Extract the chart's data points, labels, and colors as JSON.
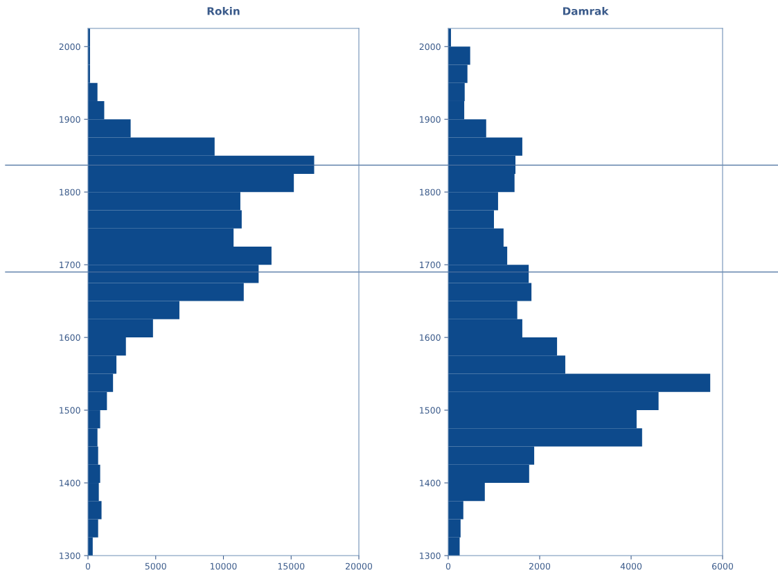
{
  "chart_data": [
    {
      "type": "histogram",
      "orientation": "horizontal",
      "title": "Rokin",
      "color": "#0d4a8c",
      "bins": [
        1300,
        1325,
        1350,
        1375,
        1400,
        1425,
        1450,
        1475,
        1500,
        1525,
        1550,
        1575,
        1600,
        1625,
        1650,
        1675,
        1700,
        1725,
        1750,
        1775,
        1800,
        1825,
        1850,
        1875,
        1900,
        1925,
        1950,
        1975,
        2000,
        2025
      ],
      "values": [
        350,
        750,
        1000,
        800,
        900,
        750,
        700,
        900,
        1400,
        1850,
        2100,
        2800,
        4800,
        6750,
        11500,
        12600,
        13550,
        10750,
        11350,
        11250,
        15200,
        16700,
        9350,
        3150,
        1200,
        700,
        150,
        150,
        150
      ],
      "xlim": [
        0,
        20000
      ],
      "xticks": [
        0,
        5000,
        10000,
        15000,
        20000
      ],
      "ylim": [
        1300,
        2025
      ],
      "yticks": [
        1300,
        1400,
        1500,
        1600,
        1700,
        1800,
        1900,
        2000
      ],
      "ref_lines": [
        {
          "axis": "y",
          "value": 1837,
          "color": "#4a6f9e"
        },
        {
          "axis": "y",
          "value": 1690,
          "color": "#4a6f9e"
        }
      ]
    },
    {
      "type": "histogram",
      "orientation": "horizontal",
      "title": "Damrak",
      "color": "#0d4a8c",
      "bins": [
        1300,
        1325,
        1350,
        1375,
        1400,
        1425,
        1450,
        1475,
        1500,
        1525,
        1550,
        1575,
        1600,
        1625,
        1650,
        1675,
        1700,
        1725,
        1750,
        1775,
        1800,
        1825,
        1850,
        1875,
        1900,
        1925,
        1950,
        1975,
        2000,
        2025
      ],
      "values": [
        250,
        270,
        330,
        800,
        1770,
        1880,
        4240,
        4120,
        4600,
        5730,
        2560,
        2380,
        1620,
        1510,
        1820,
        1760,
        1290,
        1210,
        1000,
        1090,
        1450,
        1470,
        1620,
        830,
        350,
        360,
        420,
        480,
        60
      ],
      "xlim": [
        0,
        6000
      ],
      "xticks": [
        0,
        2000,
        4000,
        6000
      ],
      "ylim": [
        1300,
        2025
      ],
      "yticks": [
        1300,
        1400,
        1500,
        1600,
        1700,
        1800,
        1900,
        2000
      ],
      "ref_lines": [
        {
          "axis": "y",
          "value": 1837,
          "color": "#4a6f9e"
        },
        {
          "axis": "y",
          "value": 1690,
          "color": "#4a6f9e"
        }
      ]
    }
  ]
}
